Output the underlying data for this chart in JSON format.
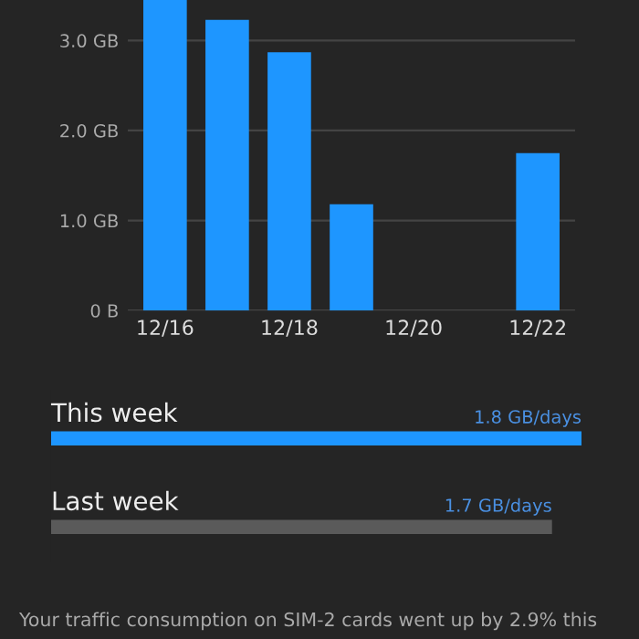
{
  "chart_data": [
    {
      "type": "bar",
      "categories": [
        "12/16",
        null,
        "12/18",
        null,
        "12/20",
        null,
        "12/22"
      ],
      "values": [
        3.45,
        3.23,
        2.87,
        1.18,
        0,
        0,
        1.75
      ],
      "color": "#1e96ff",
      "ylim": [
        0,
        3.45
      ],
      "yticks": [
        {
          "value": 0,
          "label": "0 B"
        },
        {
          "value": 1,
          "label": "1.0 GB"
        },
        {
          "value": 2,
          "label": "2.0 GB"
        },
        {
          "value": 3,
          "label": "3.0 GB"
        }
      ],
      "grid": "y"
    },
    {
      "type": "bar",
      "orientation": "horizontal",
      "categories": [
        "This week",
        "Last week"
      ],
      "values": [
        1.8,
        1.7
      ],
      "colors": [
        "#1e96ff",
        "#5a5a5a"
      ],
      "value_labels": [
        "1.8 GB/days",
        "1.7 GB/days"
      ],
      "tick_labels": false,
      "annotations": [
        "Your traffic consumption on SIM-2 cards went up by 2.9% this"
      ]
    }
  ]
}
